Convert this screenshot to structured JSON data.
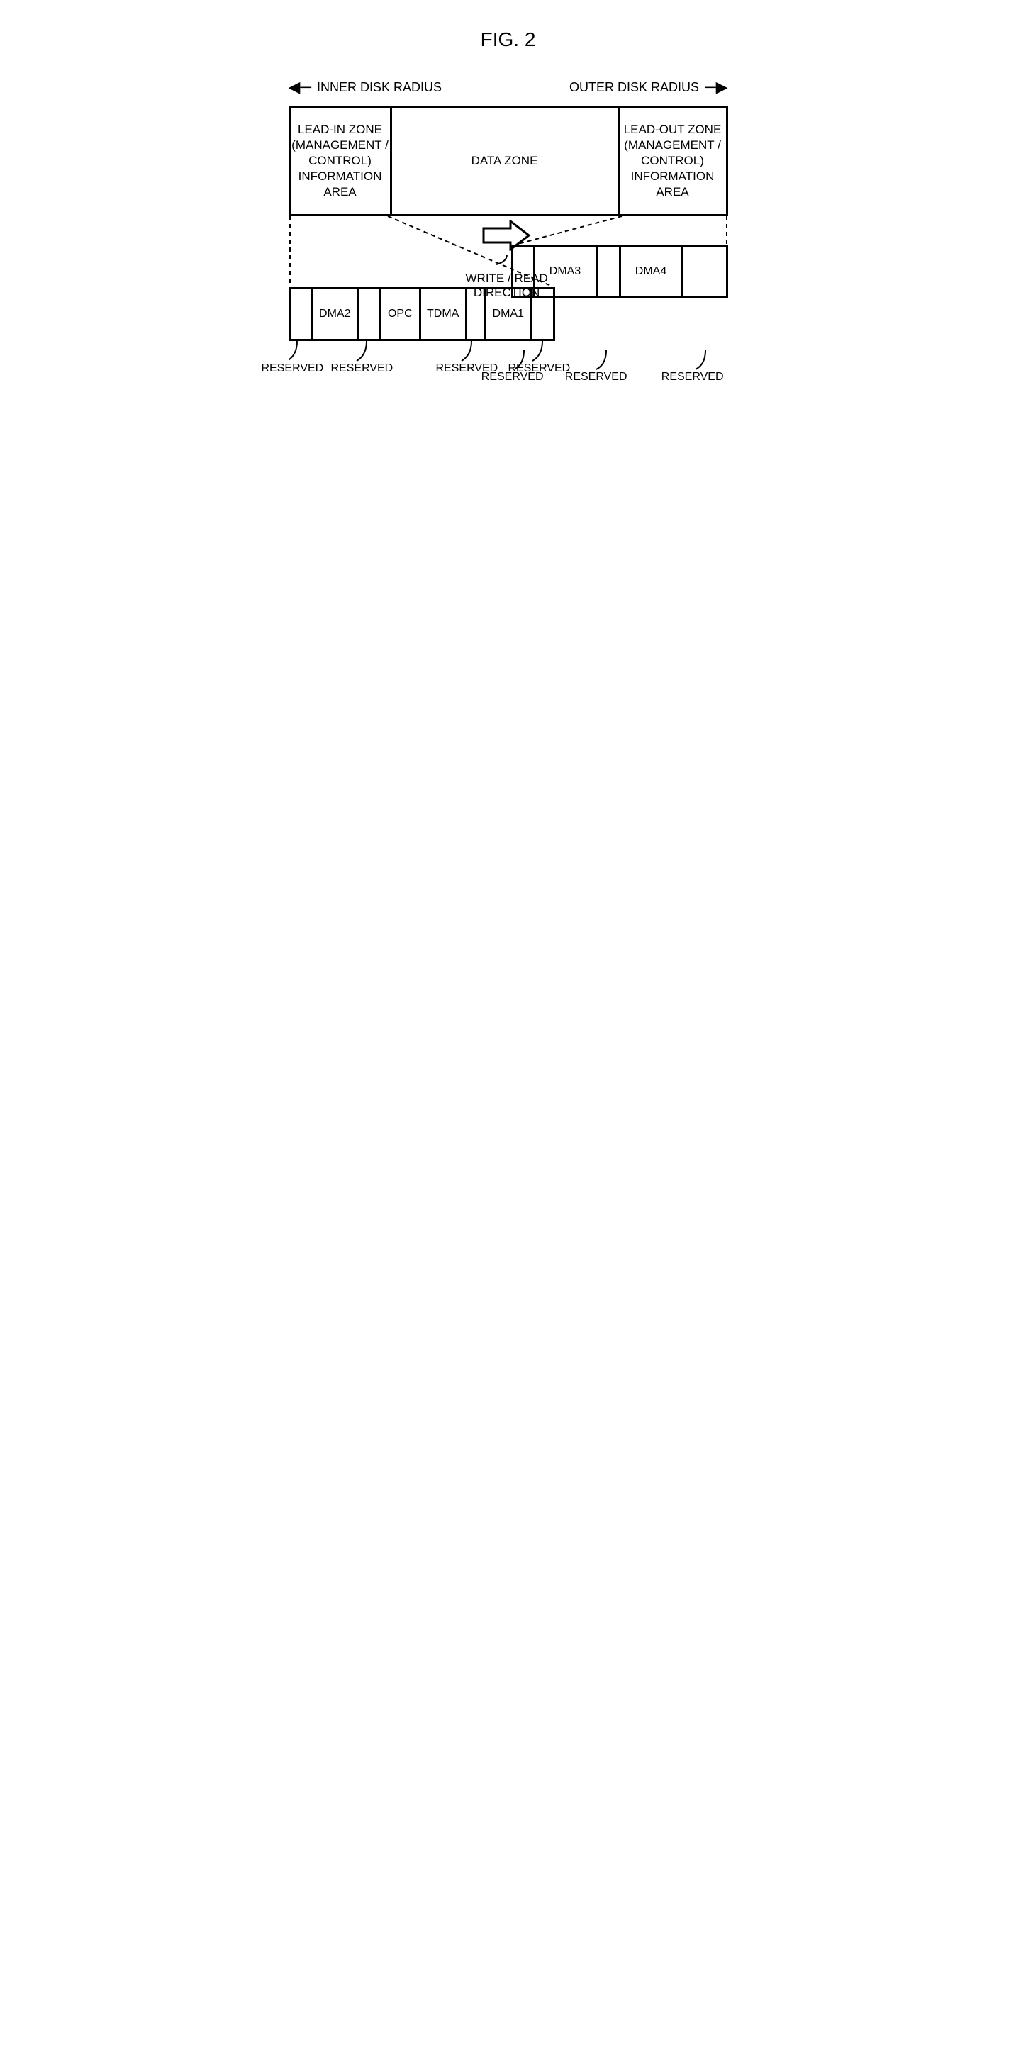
{
  "figTitle": "FIG. 2",
  "innerRadius": "INNER DISK RADIUS",
  "outerRadius": "OUTER DISK RADIUS",
  "zones": {
    "leadIn": "LEAD-IN ZONE\n(MANAGEMENT / CONTROL)\nINFORMATION AREA",
    "data": "DATA ZONE",
    "leadOut": "LEAD-OUT ZONE\n(MANAGEMENT / CONTROL)\nINFORMATION AREA"
  },
  "writeRead": "WRITE / READ\nDIRECTION",
  "leadInDetail": [
    {
      "label": "",
      "w": 30
    },
    {
      "label": "DMA2",
      "w": 65
    },
    {
      "label": "",
      "w": 30
    },
    {
      "label": "OPC",
      "w": 55
    },
    {
      "label": "TDMA",
      "w": 65
    },
    {
      "label": "",
      "w": 25
    },
    {
      "label": "DMA1",
      "w": 65
    },
    {
      "label": "",
      "w": 30
    }
  ],
  "leadOutDetail": [
    {
      "label": "",
      "w": 28
    },
    {
      "label": "DMA3",
      "w": 85
    },
    {
      "label": "",
      "w": 30
    },
    {
      "label": "DMA4",
      "w": 85
    },
    {
      "label": "",
      "w": 60
    }
  ],
  "reserved": "RESERVED"
}
